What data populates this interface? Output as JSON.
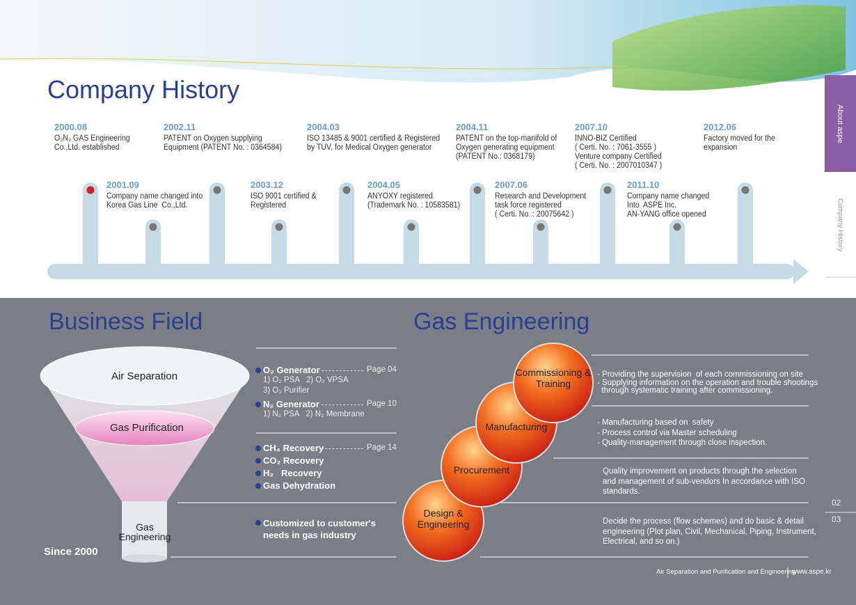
{
  "header": {
    "title": "Company History"
  },
  "side_tabs": [
    "About aspe",
    "Company History"
  ],
  "timeline": {
    "top": [
      {
        "date": "2000.08",
        "lines": [
          "O₂N₂ GAS Engineering",
          "Co.,Ltd. established"
        ]
      },
      {
        "date": "2002.11",
        "lines": [
          "PATENT on Oxygen supplying",
          "Equipment (PATENT No. : 0364584)"
        ]
      },
      {
        "date": "2004.03",
        "lines": [
          "ISO 13485 & 9001 certified & Registered",
          "by TUV, for Medical Oxygen generator"
        ]
      },
      {
        "date": "2004.11",
        "lines": [
          "PATENT on the top-manifold of",
          "Oxygen generating equipment",
          "(PATENT No.: 0368179)"
        ]
      },
      {
        "date": "2007.10",
        "lines": [
          "INNO-BIZ Certified",
          "( Certi. No. : 7061-3555 )",
          "Venture company Certified",
          "( Certi. No. : 2007010347 )"
        ]
      },
      {
        "date": "2012.06",
        "lines": [
          "Factory moved for the",
          "expansion"
        ]
      }
    ],
    "bottom": [
      {
        "date": "2001.09",
        "lines": [
          "Company name changed into",
          "Korea Gas Line  Co.,Ltd."
        ]
      },
      {
        "date": "2003.12",
        "lines": [
          "ISO 9001 certified &",
          "Registered"
        ]
      },
      {
        "date": "2004.05",
        "lines": [
          "ANYOXY registered",
          "(Trademark No. : 10583581)"
        ]
      },
      {
        "date": "2007.06",
        "lines": [
          "Research and Development",
          "task force registered",
          "( Certi. No. : 20075642 )"
        ]
      },
      {
        "date": "2011.10",
        "lines": [
          "Company name changed",
          "Into  ASPE Inc.",
          "AN-YANG office opened"
        ]
      }
    ]
  },
  "business": {
    "title": "Business Field",
    "funnel": [
      "Air Separation",
      "Gas Purification",
      "Gas Engineering"
    ],
    "since": "Since 2000",
    "groups": [
      [
        {
          "name": "O₂ Generator",
          "page": "Page 04",
          "sub": [
            "1) O₂ PSA   2) O₂ VPSA",
            "3) O₂ Purifier"
          ]
        },
        {
          "name": "N₂ Generator",
          "page": "Page 10",
          "sub": [
            "1) N₂ PSA   2) N₂ Membrane"
          ]
        }
      ],
      [
        {
          "name": "CH₄ Recovery",
          "page": "Page 14"
        },
        {
          "name": "CO₂ Recovery"
        },
        {
          "name": "H₂   Recovery"
        },
        {
          "name": "Gas Dehydration"
        }
      ],
      [
        {
          "name": "Customized to customer's needs in gas industry"
        }
      ]
    ]
  },
  "gas": {
    "title": "Gas Engineering",
    "spheres": [
      "Commissioning & Training",
      "Manufacturing",
      "Procurement",
      "Design & Engineering"
    ],
    "descriptions": [
      [
        "- Providing the supervision  of each commissioning on site",
        "- Supplying information on the operation and trouble shootings",
        "  through systematic training after commissioning."
      ],
      [
        "- Manufacturing based on  safety",
        "- Process control via Master scheduling",
        "- Quality-management through close inspection."
      ],
      [
        "Quality improvement on products through the selection",
        "and management of sub-vendors In accordance with ISO",
        "standards."
      ],
      [
        "Decide the process (flow schemes) and do basic & detail",
        "engineering (Plot plan, Civil, Mechanical, Piping, Instrument,",
        "Electrical, and so on.)"
      ]
    ]
  },
  "page_numbers": [
    "02",
    "03"
  ],
  "footer": {
    "tagline": "Air Separation and Purification and Engineering",
    "url": "www.aspe.kr"
  }
}
